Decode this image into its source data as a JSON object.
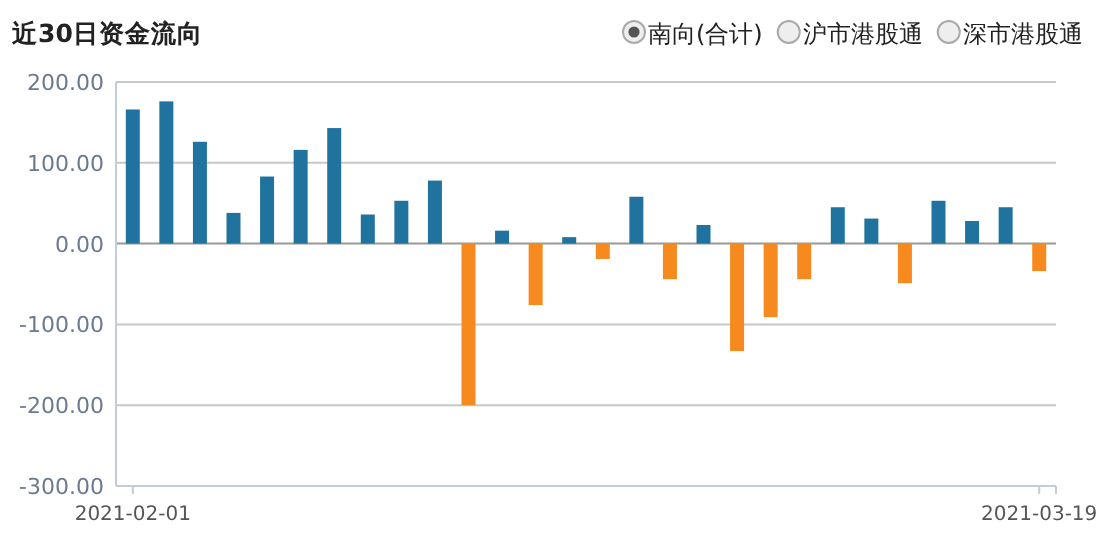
{
  "chart_data": {
    "type": "bar",
    "title": "近30日资金流向",
    "categories": [
      "2021-02-01",
      null,
      null,
      null,
      null,
      null,
      null,
      null,
      null,
      null,
      null,
      null,
      null,
      null,
      null,
      null,
      null,
      null,
      null,
      null,
      null,
      null,
      null,
      null,
      null,
      null,
      null,
      "2021-03-19"
    ],
    "series": [
      {
        "name": "南向(合计)",
        "values": [
          166,
          176,
          126,
          38,
          83,
          116,
          143,
          36,
          53,
          78,
          -200,
          16,
          -76,
          8,
          -19,
          58,
          -44,
          23,
          -133,
          -91,
          -44,
          45,
          31,
          -49,
          53,
          28,
          45,
          -34
        ],
        "colors": [
          "#21739f",
          "#21739f",
          "#21739f",
          "#21739f",
          "#21739f",
          "#21739f",
          "#21739f",
          "#21739f",
          "#21739f",
          "#21739f",
          "#f68a1e",
          "#21739f",
          "#f68a1e",
          "#21739f",
          "#f68a1e",
          "#21739f",
          "#f68a1e",
          "#21739f",
          "#f68a1e",
          "#f68a1e",
          "#f68a1e",
          "#21739f",
          "#21739f",
          "#f68a1e",
          "#21739f",
          "#21739f",
          "#21739f",
          "#f68a1e"
        ]
      }
    ],
    "annotations": [
      "沪市港股通",
      "深市港股通"
    ],
    "ylim": [
      -300,
      200
    ],
    "yticks": [
      {
        "value": -300,
        "label": "-300.00"
      },
      {
        "value": -200,
        "label": "-200.00"
      },
      {
        "value": -100,
        "label": "-100.00"
      },
      {
        "value": 0,
        "label": "0.00"
      },
      {
        "value": 100,
        "label": "100.00"
      },
      {
        "value": 200,
        "label": "200.00"
      }
    ],
    "grid": "y",
    "legend": "top right"
  }
}
